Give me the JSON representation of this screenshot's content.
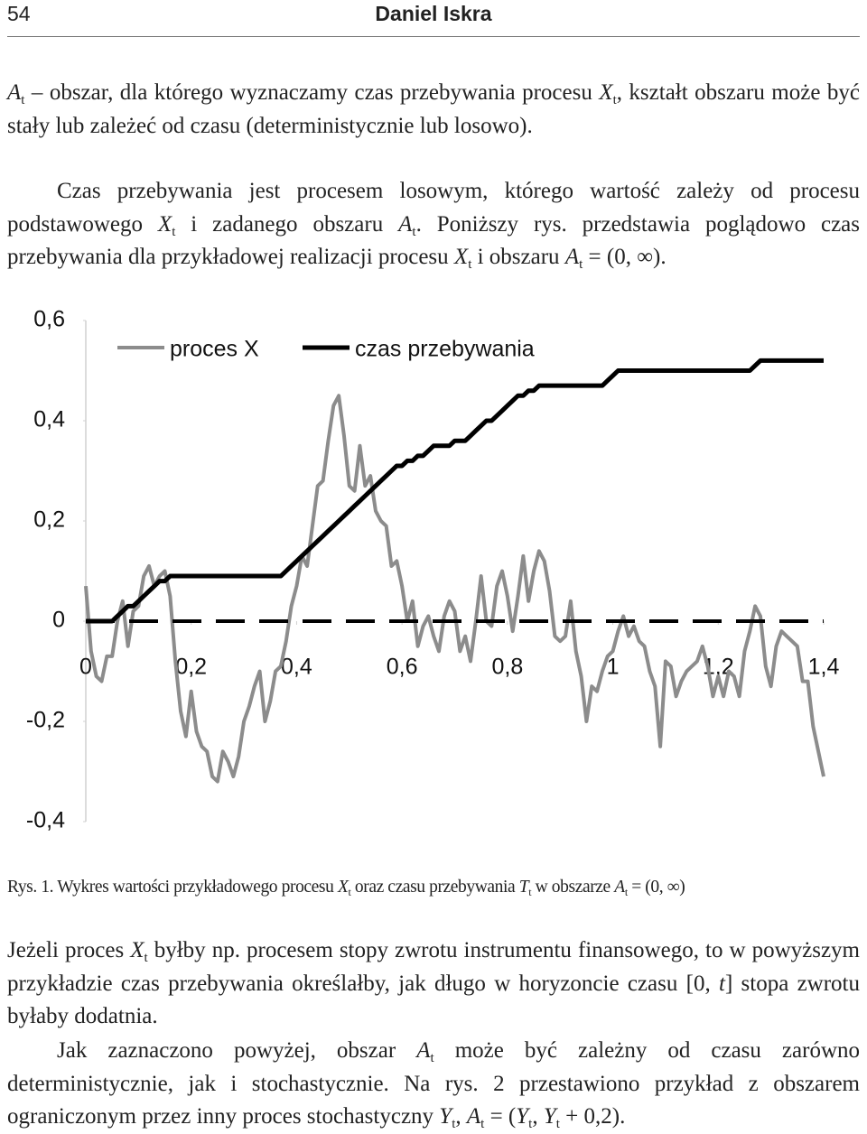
{
  "header": {
    "page": "54",
    "author": "Daniel Iskra"
  },
  "paragraphs": [
    [
      "A",
      "t",
      " – obszar, dla którego wyznaczamy czas przebywania procesu ",
      "X",
      "t",
      ", kształt obszaru może być stały lub zależeć od czasu (deterministycznie lub losowo)."
    ],
    [
      "Czas przebywania jest procesem losowym, którego wartość zależy od procesu podstawowego ",
      "X",
      "t",
      " i zadanego obszaru ",
      "A",
      "t",
      ". Poniższy rys. przedstawia poglądowo czas przebywania dla przykładowej realizacji procesu ",
      "X",
      "t",
      " i obszaru ",
      "A",
      "t",
      " = (0, ∞)."
    ],
    [
      "Jeżeli proces ",
      "X",
      "t",
      " byłby np. procesem stopy zwrotu instrumentu finansowego, to w powyższym przykładzie czas przebywania określałby, jak długo w horyzoncie czasu [0, ",
      "t",
      "] stopa zwrotu byłaby dodatnia."
    ],
    [
      "Jak zaznaczono powyżej, obszar ",
      "A",
      "t",
      " może być zależny od czasu zarówno deterministycznie, jak i stochastycznie. Na rys. 2 przestawiono przykład z obszarem ograniczonym przez inny proces stochastyczny ",
      "Y",
      "t",
      ", ",
      "A",
      "t",
      " = (",
      "Y",
      "t",
      ", ",
      "Y",
      "t",
      " + 0,2)."
    ]
  ],
  "caption": [
    "Rys. 1. Wykres wartości przykładowego procesu ",
    "X",
    "t",
    " oraz czasu przebywania ",
    "T",
    "t",
    " w obszarze ",
    "A",
    "t",
    " = (0, ∞)"
  ],
  "chart_data": {
    "type": "line",
    "x": [
      0,
      0.01,
      0.02,
      0.03,
      0.04,
      0.05,
      0.06,
      0.07,
      0.08,
      0.09,
      0.1,
      0.11,
      0.12,
      0.13,
      0.14,
      0.15,
      0.16,
      0.17,
      0.18,
      0.19,
      0.2,
      0.21,
      0.22,
      0.23,
      0.24,
      0.25,
      0.26,
      0.27,
      0.28,
      0.29,
      0.3,
      0.31,
      0.32,
      0.33,
      0.34,
      0.35,
      0.36,
      0.37,
      0.38,
      0.39,
      0.4,
      0.41,
      0.42,
      0.43,
      0.44,
      0.45,
      0.46,
      0.47,
      0.48,
      0.49,
      0.5,
      0.51,
      0.52,
      0.53,
      0.54,
      0.55,
      0.56,
      0.57,
      0.58,
      0.59,
      0.6,
      0.61,
      0.62,
      0.63,
      0.64,
      0.65,
      0.66,
      0.67,
      0.68,
      0.69,
      0.7,
      0.71,
      0.72,
      0.73,
      0.74,
      0.75,
      0.76,
      0.77,
      0.78,
      0.79,
      0.8,
      0.81,
      0.82,
      0.83,
      0.84,
      0.85,
      0.86,
      0.87,
      0.88,
      0.89,
      0.9,
      0.91,
      0.92,
      0.93,
      0.94,
      0.95,
      0.96,
      0.97,
      0.98,
      0.99,
      1,
      1.01,
      1.02,
      1.03,
      1.04,
      1.05,
      1.06,
      1.07,
      1.08,
      1.09,
      1.1,
      1.11,
      1.12,
      1.13,
      1.14,
      1.15,
      1.16,
      1.17,
      1.18,
      1.19,
      1.2,
      1.21,
      1.22,
      1.23,
      1.24,
      1.25,
      1.26,
      1.27,
      1.28,
      1.29,
      1.3,
      1.31,
      1.32,
      1.33,
      1.34,
      1.35,
      1.36,
      1.37,
      1.38,
      1.39,
      1.4
    ],
    "series": [
      {
        "name": "proces X",
        "color": "#8c8c8c",
        "values": [
          0.07,
          -0.06,
          -0.11,
          -0.12,
          -0.07,
          -0.07,
          0,
          0.04,
          -0.05,
          0.02,
          0.03,
          0.09,
          0.11,
          0.07,
          0.09,
          0.1,
          0.05,
          -0.08,
          -0.18,
          -0.23,
          -0.14,
          -0.22,
          -0.25,
          -0.26,
          -0.31,
          -0.32,
          -0.26,
          -0.28,
          -0.31,
          -0.27,
          -0.2,
          -0.17,
          -0.13,
          -0.1,
          -0.2,
          -0.16,
          -0.1,
          -0.09,
          -0.04,
          0.03,
          0.07,
          0.13,
          0.11,
          0.19,
          0.27,
          0.28,
          0.36,
          0.43,
          0.45,
          0.37,
          0.27,
          0.26,
          0.35,
          0.27,
          0.29,
          0.22,
          0.2,
          0.19,
          0.11,
          0.12,
          0.07,
          0,
          0.04,
          -0.05,
          -0.01,
          0.01,
          -0.03,
          -0.06,
          0.01,
          0.04,
          0.02,
          -0.06,
          -0.03,
          -0.08,
          0,
          0.09,
          0,
          -0.01,
          0.07,
          0.1,
          0.05,
          -0.02,
          0.05,
          0.13,
          0.04,
          0.1,
          0.14,
          0.12,
          0.06,
          -0.03,
          -0.04,
          -0.03,
          0.04,
          -0.06,
          -0.11,
          -0.2,
          -0.13,
          -0.14,
          -0.1,
          -0.07,
          -0.06,
          -0.02,
          0.01,
          -0.03,
          -0.01,
          -0.04,
          -0.05,
          -0.1,
          -0.13,
          -0.25,
          -0.08,
          -0.09,
          -0.15,
          -0.12,
          -0.1,
          -0.09,
          -0.08,
          -0.05,
          -0.09,
          -0.15,
          -0.11,
          -0.15,
          -0.1,
          -0.11,
          -0.15,
          -0.06,
          -0.02,
          0.03,
          0.01,
          -0.09,
          -0.13,
          -0.05,
          -0.02,
          -0.03,
          -0.04,
          -0.05,
          -0.12,
          -0.12,
          -0.21,
          -0.26,
          -0.31
        ]
      },
      {
        "name": "czas przebywania",
        "color": "#000000",
        "values": [
          0,
          0,
          0,
          0,
          0,
          0,
          0.01,
          0.02,
          0.03,
          0.03,
          0.04,
          0.05,
          0.06,
          0.07,
          0.08,
          0.08,
          0.09,
          0.09,
          0.09,
          0.09,
          0.09,
          0.09,
          0.09,
          0.09,
          0.09,
          0.09,
          0.09,
          0.09,
          0.09,
          0.09,
          0.09,
          0.09,
          0.09,
          0.09,
          0.09,
          0.09,
          0.09,
          0.09,
          0.1,
          0.11,
          0.12,
          0.13,
          0.14,
          0.15,
          0.16,
          0.17,
          0.18,
          0.19,
          0.2,
          0.21,
          0.22,
          0.23,
          0.24,
          0.25,
          0.26,
          0.27,
          0.28,
          0.29,
          0.3,
          0.31,
          0.31,
          0.32,
          0.32,
          0.33,
          0.33,
          0.34,
          0.35,
          0.35,
          0.35,
          0.35,
          0.36,
          0.36,
          0.36,
          0.37,
          0.38,
          0.39,
          0.4,
          0.4,
          0.41,
          0.42,
          0.43,
          0.44,
          0.45,
          0.45,
          0.46,
          0.46,
          0.47,
          0.47,
          0.47,
          0.47,
          0.47,
          0.47,
          0.47,
          0.47,
          0.47,
          0.47,
          0.47,
          0.47,
          0.47,
          0.48,
          0.49,
          0.5,
          0.5,
          0.5,
          0.5,
          0.5,
          0.5,
          0.5,
          0.5,
          0.5,
          0.5,
          0.5,
          0.5,
          0.5,
          0.5,
          0.5,
          0.5,
          0.5,
          0.5,
          0.5,
          0.5,
          0.5,
          0.5,
          0.5,
          0.5,
          0.5,
          0.5,
          0.51,
          0.52,
          0.52,
          0.52,
          0.52,
          0.52,
          0.52,
          0.52,
          0.52,
          0.52,
          0.52,
          0.52,
          0.52,
          0.52
        ]
      }
    ],
    "xlim": [
      0,
      1.4
    ],
    "xticks": [
      0,
      {
        "value": 0.2,
        "label": "0,2"
      },
      {
        "value": 0.4,
        "label": "0,4"
      },
      {
        "value": 0.6,
        "label": "0,6"
      },
      {
        "value": 0.8,
        "label": "0,8"
      },
      1,
      {
        "value": 1.2,
        "label": "1,2"
      },
      {
        "value": 1.4,
        "label": "1,4"
      }
    ],
    "ylim": [
      -0.4,
      0.6
    ],
    "yticks": [
      {
        "value": 0.6,
        "label": "0,6"
      },
      {
        "value": 0.4,
        "label": "0,4"
      },
      {
        "value": 0.2,
        "label": "0,2"
      },
      0,
      {
        "value": -0.2,
        "label": "-0,2"
      },
      {
        "value": -0.4,
        "label": "-0,4"
      }
    ],
    "legend": "top"
  }
}
